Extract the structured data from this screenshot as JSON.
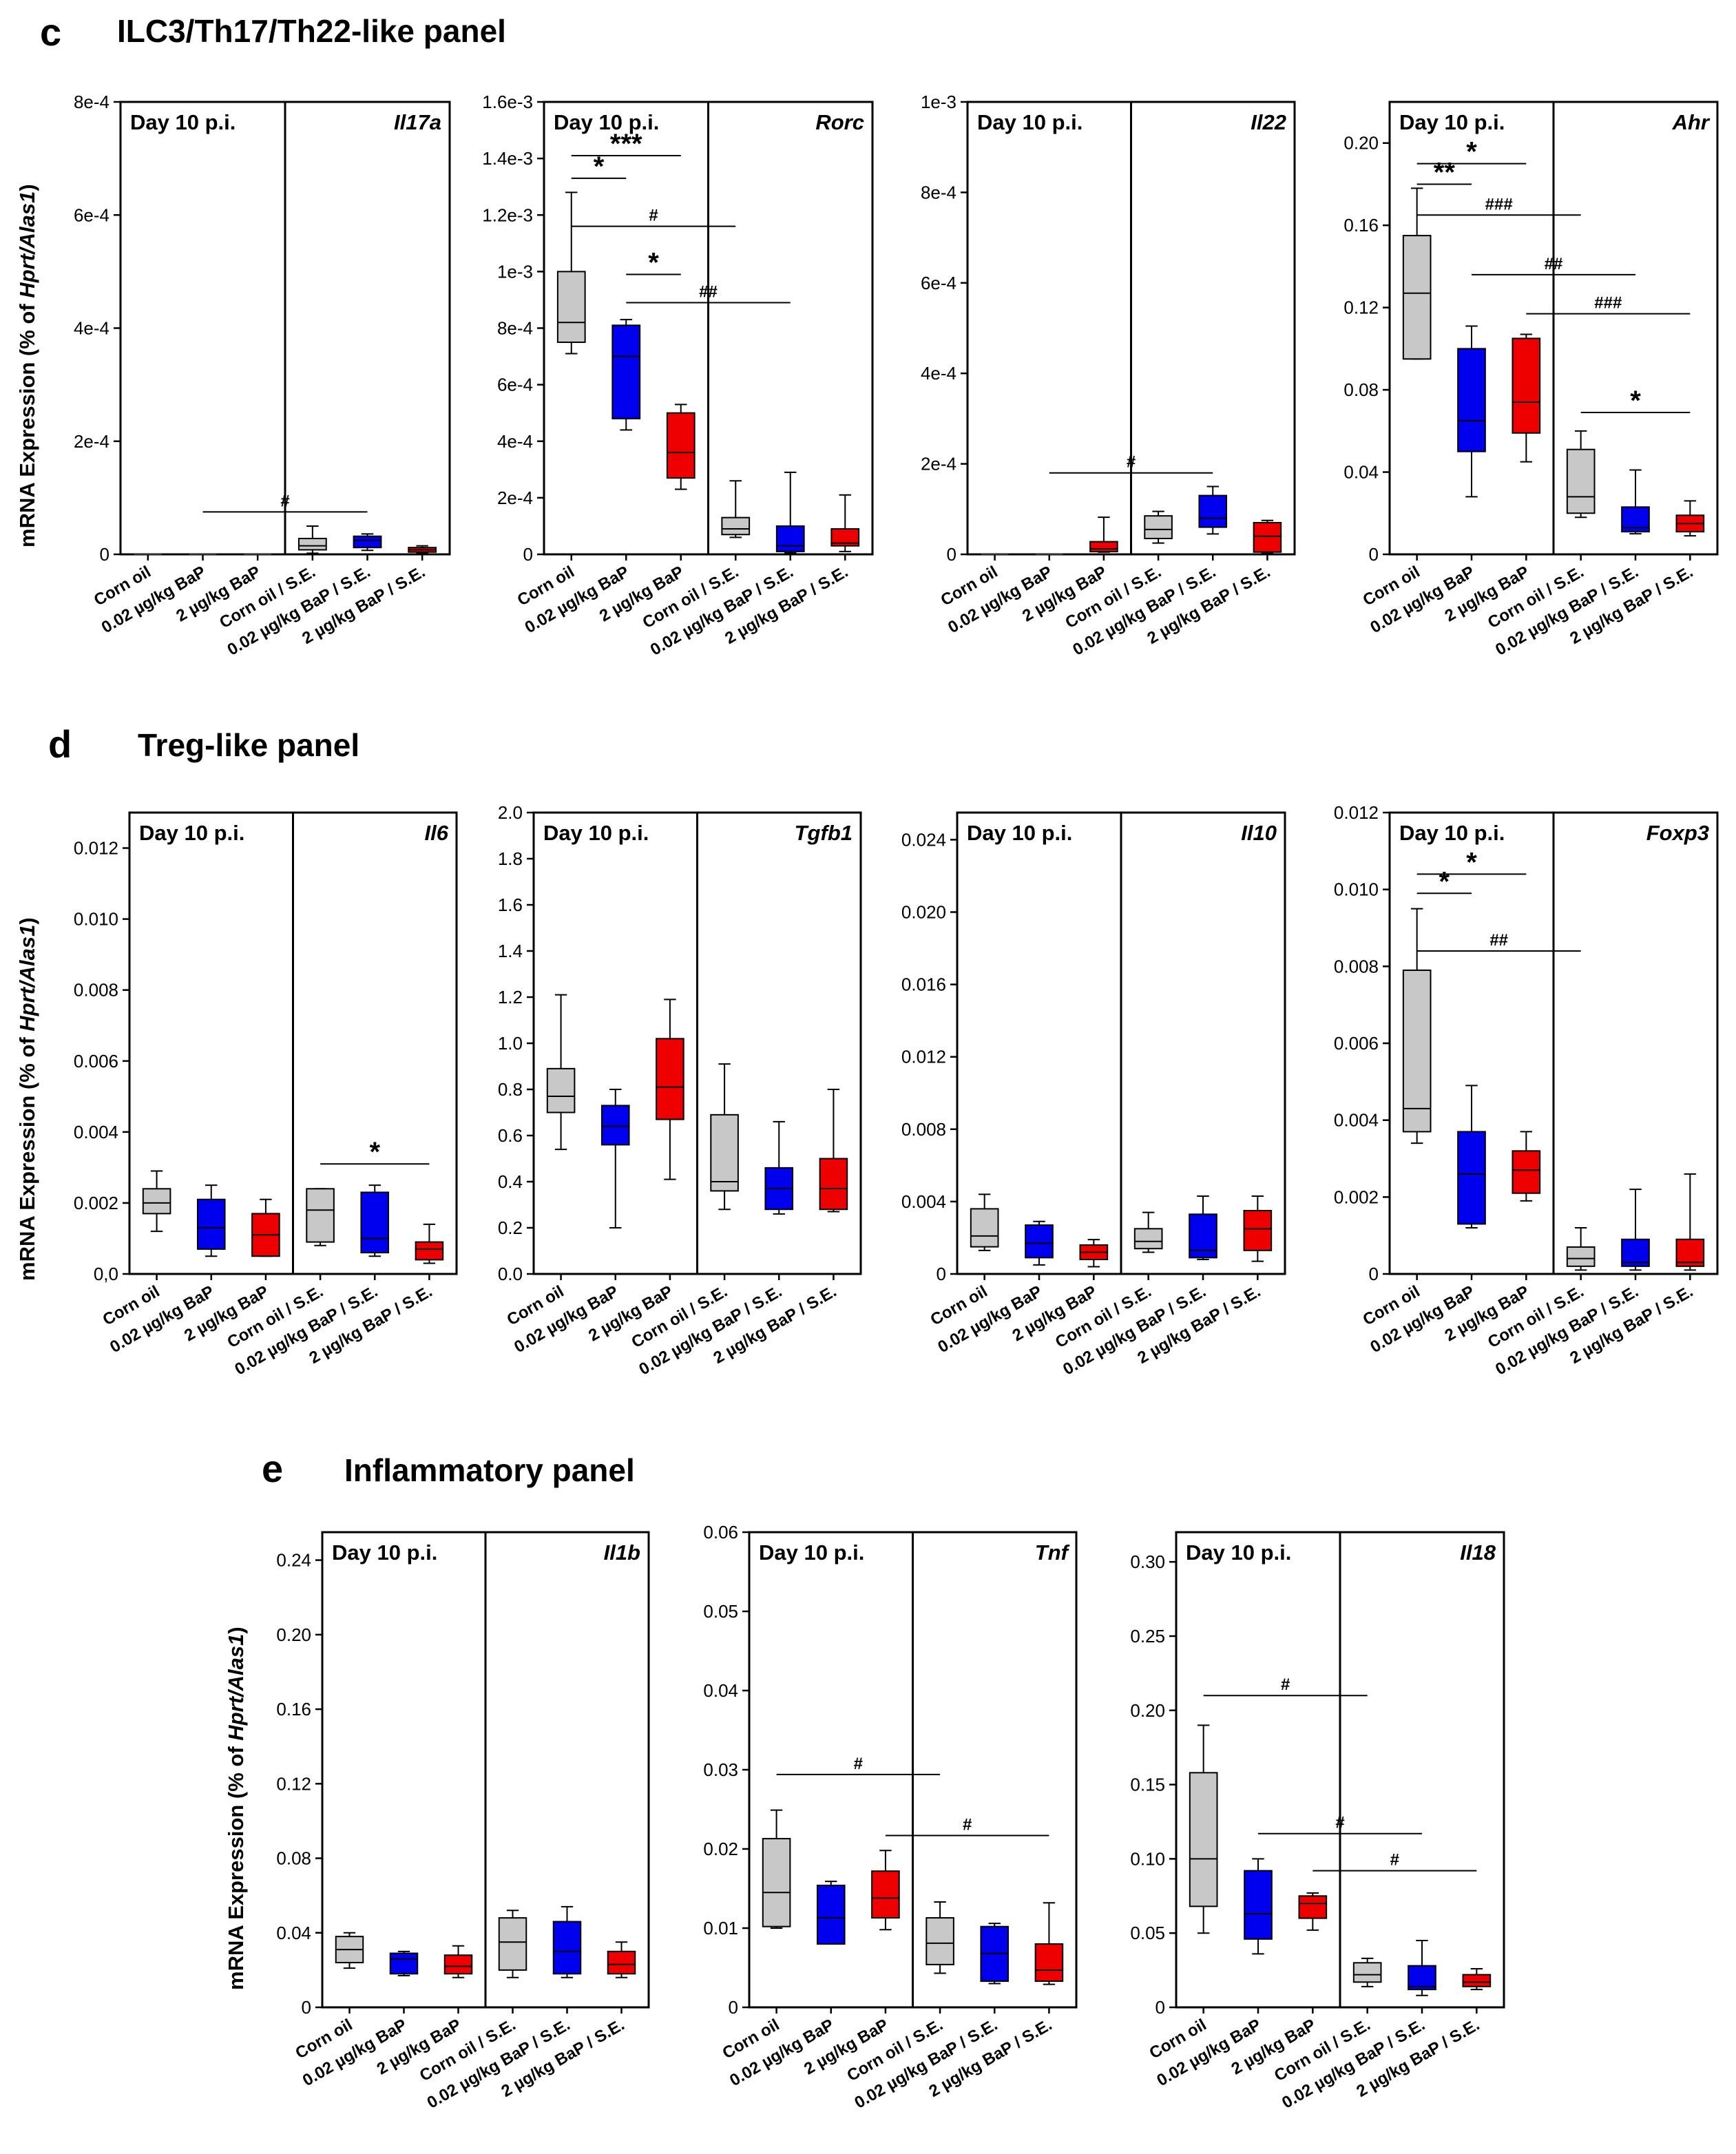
{
  "sections": [
    {
      "letter": "c",
      "title": "ILC3/Th17/Th22-like panel"
    },
    {
      "letter": "d",
      "title": "Treg-like panel"
    },
    {
      "letter": "e",
      "title": "Inflammatory panel"
    }
  ],
  "y_axis_label": {
    "before": "mRNA Expression (% of ",
    "italic": "Hprt/Alas1",
    "after": ")"
  },
  "categories": [
    "Corn oil",
    "0.02 µg/kg BaP",
    "2 µg/kg BaP",
    "Corn oil / S.E.",
    "0.02 µg/kg BaP / S.E.",
    "2 µg/kg BaP / S.E."
  ],
  "colors": {
    "corn_oil": "#c8c8c8",
    "low_bap": "#0000ee",
    "high_bap": "#ee0000",
    "median": "#000000"
  },
  "chart_data": [
    {
      "type": "box",
      "gene": "Il17a",
      "day_label": "Day 10 p.i.",
      "yticks": [
        0,
        0.0002,
        0.0004,
        0.0006,
        0.0008
      ],
      "ytick_labels": [
        "0",
        "2e-4",
        "4e-4",
        "6e-4",
        "8e-4"
      ],
      "ylim": [
        0,
        0.0008
      ],
      "boxes": [
        [
          0,
          0,
          0,
          0,
          0
        ],
        [
          0,
          0,
          0,
          0,
          0
        ],
        [
          0,
          0,
          0,
          0,
          0
        ],
        [
          2e-06,
          8e-06,
          1.5e-05,
          2.8e-05,
          5e-05
        ],
        [
          7e-06,
          1.2e-05,
          2.5e-05,
          3.2e-05,
          3.6e-05
        ],
        [
          2e-06,
          4e-06,
          8e-06,
          1.2e-05,
          1.5e-05
        ]
      ],
      "annotations": [
        {
          "text": "#",
          "from": 1,
          "to": 4,
          "y": 7.5e-05
        }
      ]
    },
    {
      "type": "box",
      "gene": "Rorc",
      "day_label": "Day 10 p.i.",
      "yticks": [
        0,
        0.0002,
        0.0004,
        0.0006,
        0.0008,
        0.001,
        0.0012,
        0.0014,
        0.0016
      ],
      "ytick_labels": [
        "0",
        "2e-4",
        "4e-4",
        "6e-4",
        "8e-4",
        "1e-3",
        "1.2e-3",
        "1.4e-3",
        "1.6e-3"
      ],
      "ylim": [
        0,
        0.0016
      ],
      "boxes": [
        [
          0.00071,
          0.00075,
          0.00082,
          0.001,
          0.00128
        ],
        [
          0.00044,
          0.00048,
          0.0007,
          0.00081,
          0.00083
        ],
        [
          0.00023,
          0.00027,
          0.00036,
          0.0005,
          0.00053
        ],
        [
          6e-05,
          7e-05,
          9e-05,
          0.00013,
          0.00026
        ],
        [
          5e-06,
          1e-05,
          3e-05,
          0.0001,
          0.00029
        ],
        [
          1e-05,
          3e-05,
          4e-05,
          9e-05,
          0.00021
        ]
      ],
      "annotations": [
        {
          "text": "*",
          "from": 0,
          "to": 1,
          "y": 0.00133
        },
        {
          "text": "***",
          "from": 0,
          "to": 2,
          "y": 0.00141
        },
        {
          "text": "#",
          "from": 0,
          "to": 3,
          "y": 0.00116
        },
        {
          "text": "*",
          "from": 1,
          "to": 2,
          "y": 0.00099
        },
        {
          "text": "##",
          "from": 1,
          "to": 4,
          "y": 0.00089
        }
      ]
    },
    {
      "type": "box",
      "gene": "Il22",
      "day_label": "Day 10 p.i.",
      "yticks": [
        0,
        0.0002,
        0.0004,
        0.0006,
        0.0008,
        0.001
      ],
      "ytick_labels": [
        "0",
        "2e-4",
        "4e-4",
        "6e-4",
        "8e-4",
        "1e-3"
      ],
      "ylim": [
        0,
        0.001
      ],
      "boxes": [
        [
          0,
          0,
          0,
          0,
          0
        ],
        [
          0,
          0,
          0,
          0,
          0
        ],
        [
          5e-06,
          6e-06,
          1.2e-05,
          2.8e-05,
          8.2e-05
        ],
        [
          2.5e-05,
          3.5e-05,
          5.5e-05,
          8.5e-05,
          9.5e-05
        ],
        [
          4.5e-05,
          6e-05,
          8e-05,
          0.00013,
          0.00015
        ],
        [
          2e-06,
          5e-06,
          4e-05,
          7e-05,
          7.5e-05
        ]
      ],
      "annotations": [
        {
          "text": "#",
          "from": 1,
          "to": 4,
          "y": 0.00018
        }
      ]
    },
    {
      "type": "box",
      "gene": "Ahr",
      "day_label": "Day 10 p.i.",
      "yticks": [
        0,
        0.04,
        0.08,
        0.12,
        0.16,
        0.2
      ],
      "ytick_labels": [
        "0",
        "0.04",
        "0.08",
        "0.12",
        "0.16",
        "0.20"
      ],
      "ylim": [
        0,
        0.22
      ],
      "boxes": [
        [
          0.095,
          0.095,
          0.127,
          0.155,
          0.178
        ],
        [
          0.028,
          0.05,
          0.065,
          0.1,
          0.111
        ],
        [
          0.045,
          0.059,
          0.074,
          0.105,
          0.107
        ],
        [
          0.018,
          0.02,
          0.028,
          0.051,
          0.06
        ],
        [
          0.01,
          0.011,
          0.013,
          0.023,
          0.041
        ],
        [
          0.009,
          0.011,
          0.015,
          0.019,
          0.026
        ]
      ],
      "annotations": [
        {
          "text": "**",
          "from": 0,
          "to": 1,
          "y": 0.18
        },
        {
          "text": "*",
          "from": 0,
          "to": 2,
          "y": 0.19
        },
        {
          "text": "###",
          "from": 0,
          "to": 3,
          "y": 0.165
        },
        {
          "text": "##",
          "from": 1,
          "to": 4,
          "y": 0.136
        },
        {
          "text": "###",
          "from": 2,
          "to": 5,
          "y": 0.117
        },
        {
          "text": "*",
          "from": 3,
          "to": 5,
          "y": 0.069
        }
      ]
    },
    {
      "type": "box",
      "gene": "Il6",
      "day_label": "Day 10 p.i.",
      "yticks": [
        0,
        0.002,
        0.004,
        0.006,
        0.008,
        0.01,
        0.012
      ],
      "ytick_labels": [
        "0,0",
        "0.002",
        "0.004",
        "0.006",
        "0.008",
        "0.010",
        "0.012"
      ],
      "ylim": [
        0,
        0.013
      ],
      "boxes": [
        [
          0.0012,
          0.0017,
          0.002,
          0.0024,
          0.0029
        ],
        [
          0.0005,
          0.0007,
          0.0013,
          0.0021,
          0.0025
        ],
        [
          0.0005,
          0.0005,
          0.0011,
          0.0017,
          0.0021
        ],
        [
          0.0008,
          0.0009,
          0.0018,
          0.0024,
          0.0024
        ],
        [
          0.0005,
          0.0006,
          0.001,
          0.0023,
          0.0025
        ],
        [
          0.0003,
          0.0004,
          0.0007,
          0.0009,
          0.0014
        ]
      ],
      "annotations": [
        {
          "text": "*",
          "from": 3,
          "to": 5,
          "y": 0.0031
        }
      ]
    },
    {
      "type": "box",
      "gene": "Tgfb1",
      "day_label": "Day 10 p.i.",
      "yticks": [
        0,
        0.2,
        0.4,
        0.6,
        0.8,
        1,
        1.2,
        1.4,
        1.6,
        1.8,
        2
      ],
      "ytick_labels": [
        "0.0",
        "0.2",
        "0.4",
        "0.6",
        "0.8",
        "1.0",
        "1.2",
        "1.4",
        "1.6",
        "1.8",
        "2.0"
      ],
      "ylim": [
        0,
        2
      ],
      "boxes": [
        [
          0.54,
          0.7,
          0.77,
          0.89,
          1.21
        ],
        [
          0.2,
          0.56,
          0.64,
          0.73,
          0.8
        ],
        [
          0.41,
          0.67,
          0.81,
          1.02,
          1.19
        ],
        [
          0.28,
          0.36,
          0.4,
          0.69,
          0.91
        ],
        [
          0.26,
          0.28,
          0.37,
          0.46,
          0.66
        ],
        [
          0.27,
          0.28,
          0.37,
          0.5,
          0.8
        ]
      ],
      "annotations": []
    },
    {
      "type": "box",
      "gene": "Il10",
      "day_label": "Day 10 p.i.",
      "yticks": [
        0,
        0.004,
        0.008,
        0.012,
        0.016,
        0.02,
        0.024
      ],
      "ytick_labels": [
        "0",
        "0.004",
        "0.008",
        "0.012",
        "0.016",
        "0.020",
        "0.024"
      ],
      "ylim": [
        0,
        0.0255
      ],
      "boxes": [
        [
          0.0013,
          0.0015,
          0.0021,
          0.0036,
          0.0044
        ],
        [
          0.0005,
          0.0009,
          0.0017,
          0.0027,
          0.0029
        ],
        [
          0.0004,
          0.0008,
          0.0012,
          0.0016,
          0.0019
        ],
        [
          0.0012,
          0.0014,
          0.0018,
          0.0025,
          0.0034
        ],
        [
          0.0008,
          0.0009,
          0.0013,
          0.0033,
          0.0043
        ],
        [
          0.0007,
          0.0013,
          0.0025,
          0.0035,
          0.0043
        ]
      ],
      "annotations": []
    },
    {
      "type": "box",
      "gene": "Foxp3",
      "day_label": "Day 10 p.i.",
      "yticks": [
        0,
        0.002,
        0.004,
        0.006,
        0.008,
        0.01,
        0.012
      ],
      "ytick_labels": [
        "0",
        "0.002",
        "0.004",
        "0.006",
        "0.008",
        "0.010",
        "0.012"
      ],
      "ylim": [
        0,
        0.012
      ],
      "boxes": [
        [
          0.0034,
          0.0037,
          0.0043,
          0.0079,
          0.0095
        ],
        [
          0.0012,
          0.0013,
          0.0026,
          0.0037,
          0.0049
        ],
        [
          0.0019,
          0.0021,
          0.0027,
          0.0032,
          0.0037
        ],
        [
          0.0001,
          0.0002,
          0.0004,
          0.0007,
          0.0012
        ],
        [
          0.0001,
          0.0002,
          0.0003,
          0.0009,
          0.0022
        ],
        [
          0.0001,
          0.0002,
          0.0003,
          0.0009,
          0.0026
        ]
      ],
      "annotations": [
        {
          "text": "*",
          "from": 0,
          "to": 1,
          "y": 0.0099
        },
        {
          "text": "*",
          "from": 0,
          "to": 2,
          "y": 0.0104
        },
        {
          "text": "##",
          "from": 0,
          "to": 3,
          "y": 0.0084
        }
      ]
    },
    {
      "type": "box",
      "gene": "Il1b",
      "day_label": "Day 10 p.i.",
      "yticks": [
        0,
        0.04,
        0.08,
        0.12,
        0.16,
        0.2,
        0.24
      ],
      "ytick_labels": [
        "0",
        "0.04",
        "0.08",
        "0.12",
        "0.16",
        "0.20",
        "0.24"
      ],
      "ylim": [
        0,
        0.255
      ],
      "boxes": [
        [
          0.021,
          0.024,
          0.031,
          0.038,
          0.04
        ],
        [
          0.017,
          0.018,
          0.026,
          0.029,
          0.03
        ],
        [
          0.016,
          0.018,
          0.022,
          0.028,
          0.033
        ],
        [
          0.016,
          0.02,
          0.035,
          0.048,
          0.052
        ],
        [
          0.016,
          0.018,
          0.03,
          0.046,
          0.054
        ],
        [
          0.016,
          0.018,
          0.023,
          0.03,
          0.035
        ]
      ],
      "annotations": []
    },
    {
      "type": "box",
      "gene": "Tnf",
      "day_label": "Day 10 p.i.",
      "yticks": [
        0,
        0.01,
        0.02,
        0.03,
        0.04,
        0.05,
        0.06
      ],
      "ytick_labels": [
        "0",
        "0.01",
        "0.02",
        "0.03",
        "0.04",
        "0.05",
        "0.06"
      ],
      "ylim": [
        0,
        0.06
      ],
      "boxes": [
        [
          0.01,
          0.0102,
          0.0145,
          0.0213,
          0.0249
        ],
        [
          0.008,
          0.008,
          0.0113,
          0.0154,
          0.0159
        ],
        [
          0.0098,
          0.0113,
          0.0138,
          0.0172,
          0.0198
        ],
        [
          0.0043,
          0.0054,
          0.0081,
          0.0113,
          0.0133
        ],
        [
          0.003,
          0.0033,
          0.0068,
          0.0102,
          0.0106
        ],
        [
          0.0029,
          0.0033,
          0.0047,
          0.008,
          0.0132
        ]
      ],
      "annotations": [
        {
          "text": "#",
          "from": 0,
          "to": 3,
          "y": 0.0294
        },
        {
          "text": "#",
          "from": 2,
          "to": 5,
          "y": 0.0217
        }
      ]
    },
    {
      "type": "box",
      "gene": "Il18",
      "day_label": "Day 10 p.i.",
      "yticks": [
        0,
        0.05,
        0.1,
        0.15,
        0.2,
        0.25,
        0.3
      ],
      "ytick_labels": [
        "0",
        "0.05",
        "0.10",
        "0.15",
        "0.20",
        "0.25",
        "0.30"
      ],
      "ylim": [
        0,
        0.32
      ],
      "boxes": [
        [
          0.05,
          0.068,
          0.1,
          0.158,
          0.19
        ],
        [
          0.036,
          0.046,
          0.063,
          0.092,
          0.1
        ],
        [
          0.052,
          0.06,
          0.07,
          0.075,
          0.077
        ],
        [
          0.014,
          0.017,
          0.022,
          0.03,
          0.033
        ],
        [
          0.008,
          0.012,
          0.014,
          0.028,
          0.045
        ],
        [
          0.012,
          0.014,
          0.017,
          0.022,
          0.026
        ]
      ],
      "annotations": [
        {
          "text": "#",
          "from": 0,
          "to": 3,
          "y": 0.21
        },
        {
          "text": "#",
          "from": 1,
          "to": 4,
          "y": 0.117
        },
        {
          "text": "#",
          "from": 2,
          "to": 5,
          "y": 0.092
        }
      ]
    }
  ]
}
